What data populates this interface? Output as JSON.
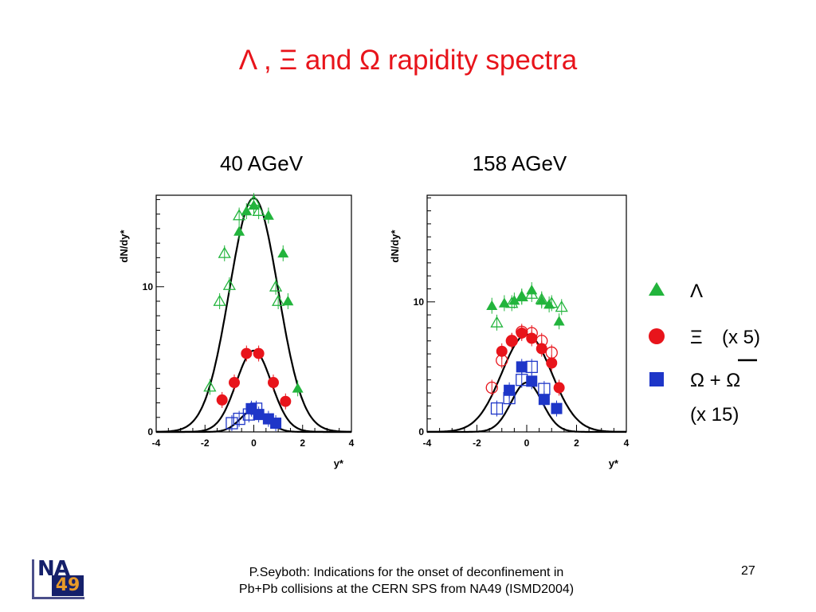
{
  "slide": {
    "title": "Λ , Ξ  and Ω  rapidity spectra",
    "footer_line1": "P.Seyboth: Indications for the onset of deconfinement in",
    "footer_line2": "Pb+Pb collisions at the CERN SPS from NA49   (ISMD2004)",
    "page_number": "27",
    "logo": {
      "top": "NA",
      "bottom": "49"
    }
  },
  "legend": [
    {
      "marker": "triangle",
      "color": "#22b43c",
      "label": "Λ",
      "extra": ""
    },
    {
      "marker": "circle",
      "color": "#e8141b",
      "label": "Ξ",
      "extra": "(x 5)"
    },
    {
      "marker": "square",
      "color": "#1e36c8",
      "label": "Ω + Ω",
      "extra": "(x 15)"
    }
  ],
  "chart_data": [
    {
      "type": "scatter",
      "title": "40 AGeV",
      "xlabel": "y*",
      "ylabel": "dN/dy*",
      "xlim": [
        -4,
        4
      ],
      "ylim": [
        0,
        16.3
      ],
      "xticks": [
        "-4",
        "-2",
        "0",
        "2",
        "4"
      ],
      "yticks": [
        {
          "value": 0,
          "label": "0"
        },
        {
          "value": 10,
          "label": "10"
        }
      ],
      "series": [
        {
          "marker": "triangle",
          "color": "#22b43c",
          "filled": true,
          "points": [
            [
              -0.6,
              13.8
            ],
            [
              -0.3,
              15.2
            ],
            [
              0.0,
              15.6
            ],
            [
              0.6,
              14.9
            ],
            [
              1.2,
              12.3
            ],
            [
              1.4,
              9.0
            ],
            [
              1.8,
              3.0
            ]
          ]
        },
        {
          "marker": "triangle",
          "color": "#22b43c",
          "filled": false,
          "points": [
            [
              -1.8,
              3.1
            ],
            [
              -1.4,
              9.0
            ],
            [
              -1.2,
              12.3
            ],
            [
              -1.0,
              10.1
            ],
            [
              -0.6,
              14.9
            ],
            [
              0.0,
              15.9
            ],
            [
              0.2,
              15.2
            ],
            [
              0.9,
              10.0
            ],
            [
              1.0,
              9.0
            ]
          ]
        },
        {
          "marker": "circle",
          "color": "#e8141b",
          "filled": true,
          "points": [
            [
              -1.3,
              2.2
            ],
            [
              -0.8,
              3.4
            ],
            [
              -0.3,
              5.4
            ],
            [
              0.2,
              5.4
            ],
            [
              0.8,
              3.4
            ],
            [
              1.3,
              2.1
            ]
          ]
        },
        {
          "marker": "square",
          "color": "#1e36c8",
          "filled": true,
          "points": [
            [
              -0.1,
              1.6
            ],
            [
              0.2,
              1.2
            ],
            [
              0.6,
              0.9
            ],
            [
              0.9,
              0.6
            ]
          ]
        },
        {
          "marker": "square",
          "color": "#1e36c8",
          "filled": false,
          "points": [
            [
              -0.9,
              0.6
            ],
            [
              -0.6,
              0.9
            ],
            [
              -0.2,
              1.2
            ],
            [
              0.1,
              1.6
            ]
          ]
        }
      ],
      "fits": [
        {
          "amplitude": 16.1,
          "sigma": 1.0
        },
        {
          "amplitude": 5.6,
          "sigma": 0.72
        },
        {
          "amplitude": 1.5,
          "sigma": 0.55
        }
      ]
    },
    {
      "type": "scatter",
      "title": "158 AGeV",
      "xlabel": "y*",
      "ylabel": "dN/dy*",
      "xlim": [
        -4,
        4
      ],
      "ylim": [
        0,
        18.2
      ],
      "xticks": [
        "-4",
        "-2",
        "0",
        "2",
        "4"
      ],
      "yticks": [
        {
          "value": 0,
          "label": "0"
        },
        {
          "value": 10,
          "label": "10"
        }
      ],
      "series": [
        {
          "marker": "triangle",
          "color": "#22b43c",
          "filled": true,
          "points": [
            [
              -1.4,
              9.7
            ],
            [
              -0.9,
              9.9
            ],
            [
              -0.5,
              10.1
            ],
            [
              -0.2,
              10.4
            ],
            [
              0.2,
              10.9
            ],
            [
              0.6,
              10.1
            ],
            [
              0.9,
              9.8
            ],
            [
              1.3,
              8.5
            ]
          ]
        },
        {
          "marker": "triangle",
          "color": "#22b43c",
          "filled": false,
          "points": [
            [
              -1.2,
              8.4
            ],
            [
              -0.6,
              9.9
            ],
            [
              -0.2,
              10.4
            ],
            [
              0.2,
              10.6
            ],
            [
              0.6,
              10.2
            ],
            [
              1.0,
              9.9
            ],
            [
              1.4,
              9.6
            ]
          ]
        },
        {
          "marker": "circle",
          "color": "#e8141b",
          "filled": true,
          "points": [
            [
              -1.0,
              6.2
            ],
            [
              -0.6,
              7.0
            ],
            [
              -0.2,
              7.6
            ],
            [
              0.2,
              7.2
            ],
            [
              0.6,
              6.4
            ],
            [
              1.0,
              5.3
            ],
            [
              1.3,
              3.4
            ]
          ]
        },
        {
          "marker": "circle",
          "color": "#e8141b",
          "filled": false,
          "points": [
            [
              -1.4,
              3.4
            ],
            [
              -1.0,
              5.5
            ],
            [
              -0.6,
              7.0
            ],
            [
              -0.2,
              7.7
            ],
            [
              0.2,
              7.6
            ],
            [
              0.6,
              7.0
            ],
            [
              1.0,
              6.1
            ]
          ]
        },
        {
          "marker": "square",
          "color": "#1e36c8",
          "filled": true,
          "points": [
            [
              -0.7,
              3.2
            ],
            [
              -0.2,
              5.0
            ],
            [
              0.2,
              3.9
            ],
            [
              0.7,
              2.5
            ],
            [
              1.2,
              1.8
            ]
          ]
        },
        {
          "marker": "square",
          "color": "#1e36c8",
          "filled": false,
          "points": [
            [
              -1.2,
              1.8
            ],
            [
              -0.7,
              2.6
            ],
            [
              -0.2,
              4.0
            ],
            [
              0.2,
              5.0
            ],
            [
              0.7,
              3.3
            ]
          ]
        }
      ],
      "fits": [
        {
          "amplitude": 7.5,
          "sigma": 1.0
        },
        {
          "amplitude": 3.8,
          "sigma": 0.62
        }
      ]
    }
  ]
}
